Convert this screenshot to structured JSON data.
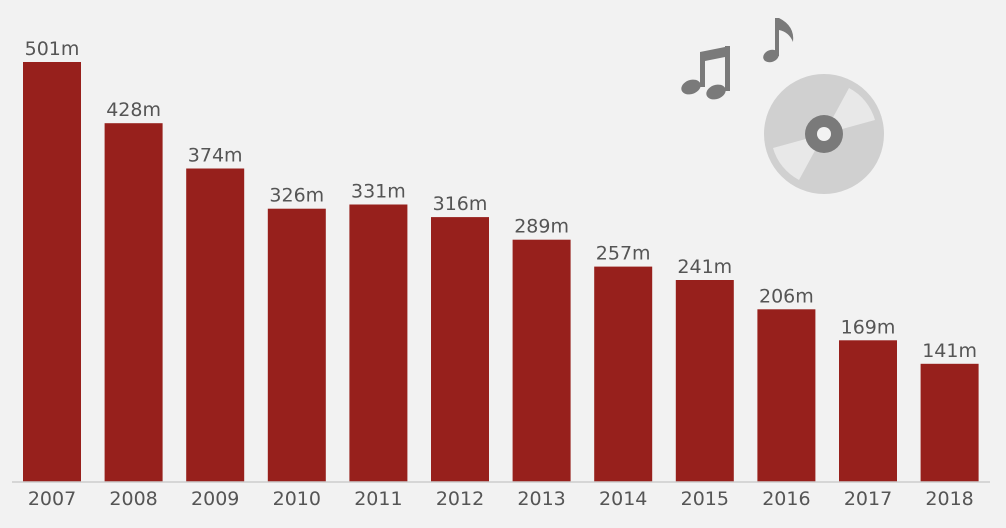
{
  "chart_data": {
    "type": "bar",
    "categories": [
      "2007",
      "2008",
      "2009",
      "2010",
      "2011",
      "2012",
      "2013",
      "2014",
      "2015",
      "2016",
      "2017",
      "2018"
    ],
    "values": [
      501,
      428,
      374,
      326,
      331,
      316,
      289,
      257,
      241,
      206,
      169,
      141
    ],
    "data_labels": [
      "501m",
      "428m",
      "374m",
      "326m",
      "331m",
      "316m",
      "289m",
      "257m",
      "241m",
      "206m",
      "169m",
      "141m"
    ],
    "title": "",
    "xlabel": "",
    "ylabel": "",
    "ylim": [
      0,
      501
    ],
    "grid": false,
    "legend": "none",
    "colors": {
      "bar": "#97201c",
      "label_text": "#555555",
      "axis_line": "#cccccc",
      "background": "#f2f2f2",
      "decoration_dark": "#7a7a7a",
      "decoration_disc": "#d0d0d0",
      "decoration_highlight": "#e8e8e8"
    }
  },
  "decoration": {
    "icons": [
      "music-note-icon",
      "music-note-icon",
      "cd-disc-icon"
    ]
  }
}
